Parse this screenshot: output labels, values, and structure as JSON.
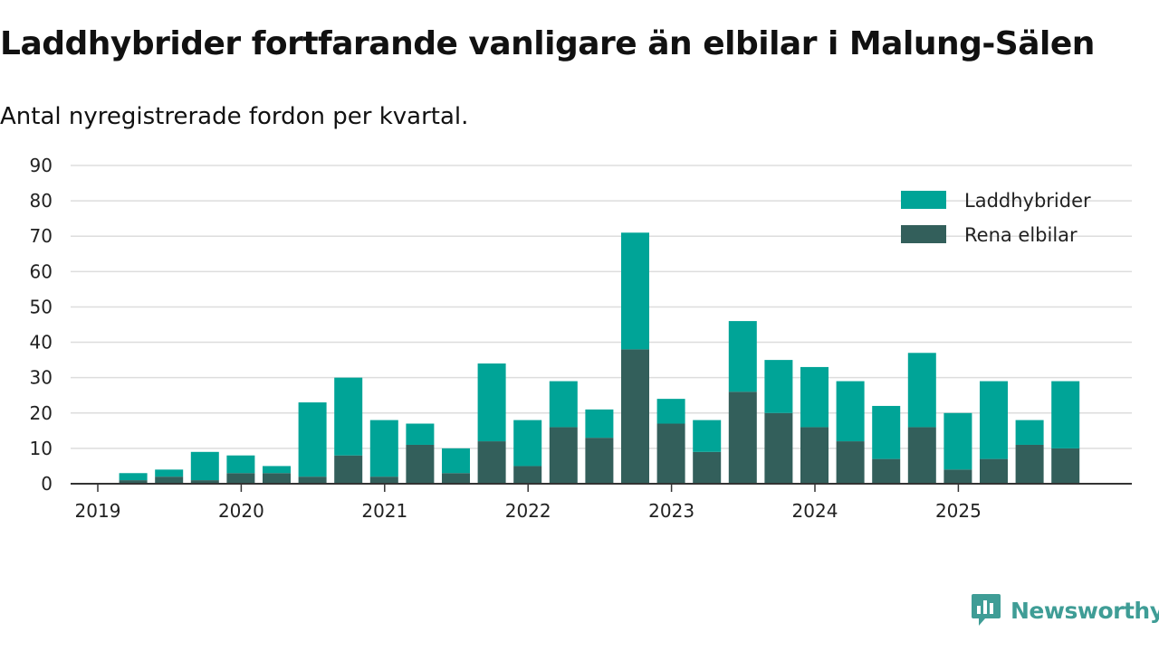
{
  "title": "Laddhybrider fortfarande vanligare än elbilar i Malung-Sälen",
  "subtitle": "Antal nyregistrerade fordon per kvartal.",
  "brand": {
    "name": "Newsworthy",
    "color": "#3f9d96",
    "icon": "newsworthy-logo-icon"
  },
  "colors": {
    "laddhybrider": "#00a497",
    "rena_elbilar": "#335f5b",
    "grid": "#dddddd",
    "axis": "#333333"
  },
  "chart_data": {
    "type": "bar",
    "stacked": true,
    "title": "Laddhybrider fortfarande vanligare än elbilar i Malung-Sälen",
    "subtitle": "Antal nyregistrerade fordon per kvartal.",
    "xlabel": "",
    "ylabel": "",
    "ylim": [
      0,
      90
    ],
    "yticks": [
      0,
      10,
      20,
      30,
      40,
      50,
      60,
      70,
      80,
      90
    ],
    "grid": true,
    "legend_position": "top-right",
    "x_tick_labels": [
      "2019",
      "2020",
      "2021",
      "2022",
      "2023",
      "2024",
      "2025"
    ],
    "categories": [
      "2019 Q1",
      "2019 Q2",
      "2019 Q3",
      "2019 Q4",
      "2020 Q1",
      "2020 Q2",
      "2020 Q3",
      "2020 Q4",
      "2021 Q1",
      "2021 Q2",
      "2021 Q3",
      "2021 Q4",
      "2022 Q1",
      "2022 Q2",
      "2022 Q3",
      "2022 Q4",
      "2023 Q1",
      "2023 Q2",
      "2023 Q3",
      "2023 Q4",
      "2024 Q1",
      "2024 Q2",
      "2024 Q3",
      "2024 Q4",
      "2025 Q1",
      "2025 Q2",
      "2025 Q3",
      "2025 Q4"
    ],
    "series": [
      {
        "name": "Rena elbilar",
        "color": "#335f5b",
        "values": [
          0,
          1,
          2,
          1,
          3,
          3,
          2,
          8,
          2,
          11,
          3,
          12,
          5,
          16,
          13,
          38,
          17,
          9,
          26,
          20,
          16,
          12,
          7,
          16,
          4,
          7,
          11,
          10
        ]
      },
      {
        "name": "Laddhybrider",
        "color": "#00a497",
        "values": [
          0,
          2,
          2,
          8,
          5,
          2,
          21,
          22,
          16,
          6,
          7,
          22,
          13,
          13,
          8,
          33,
          7,
          9,
          20,
          15,
          17,
          17,
          15,
          21,
          16,
          22,
          7,
          19
        ]
      }
    ],
    "legend": [
      "Laddhybrider",
      "Rena elbilar"
    ]
  }
}
